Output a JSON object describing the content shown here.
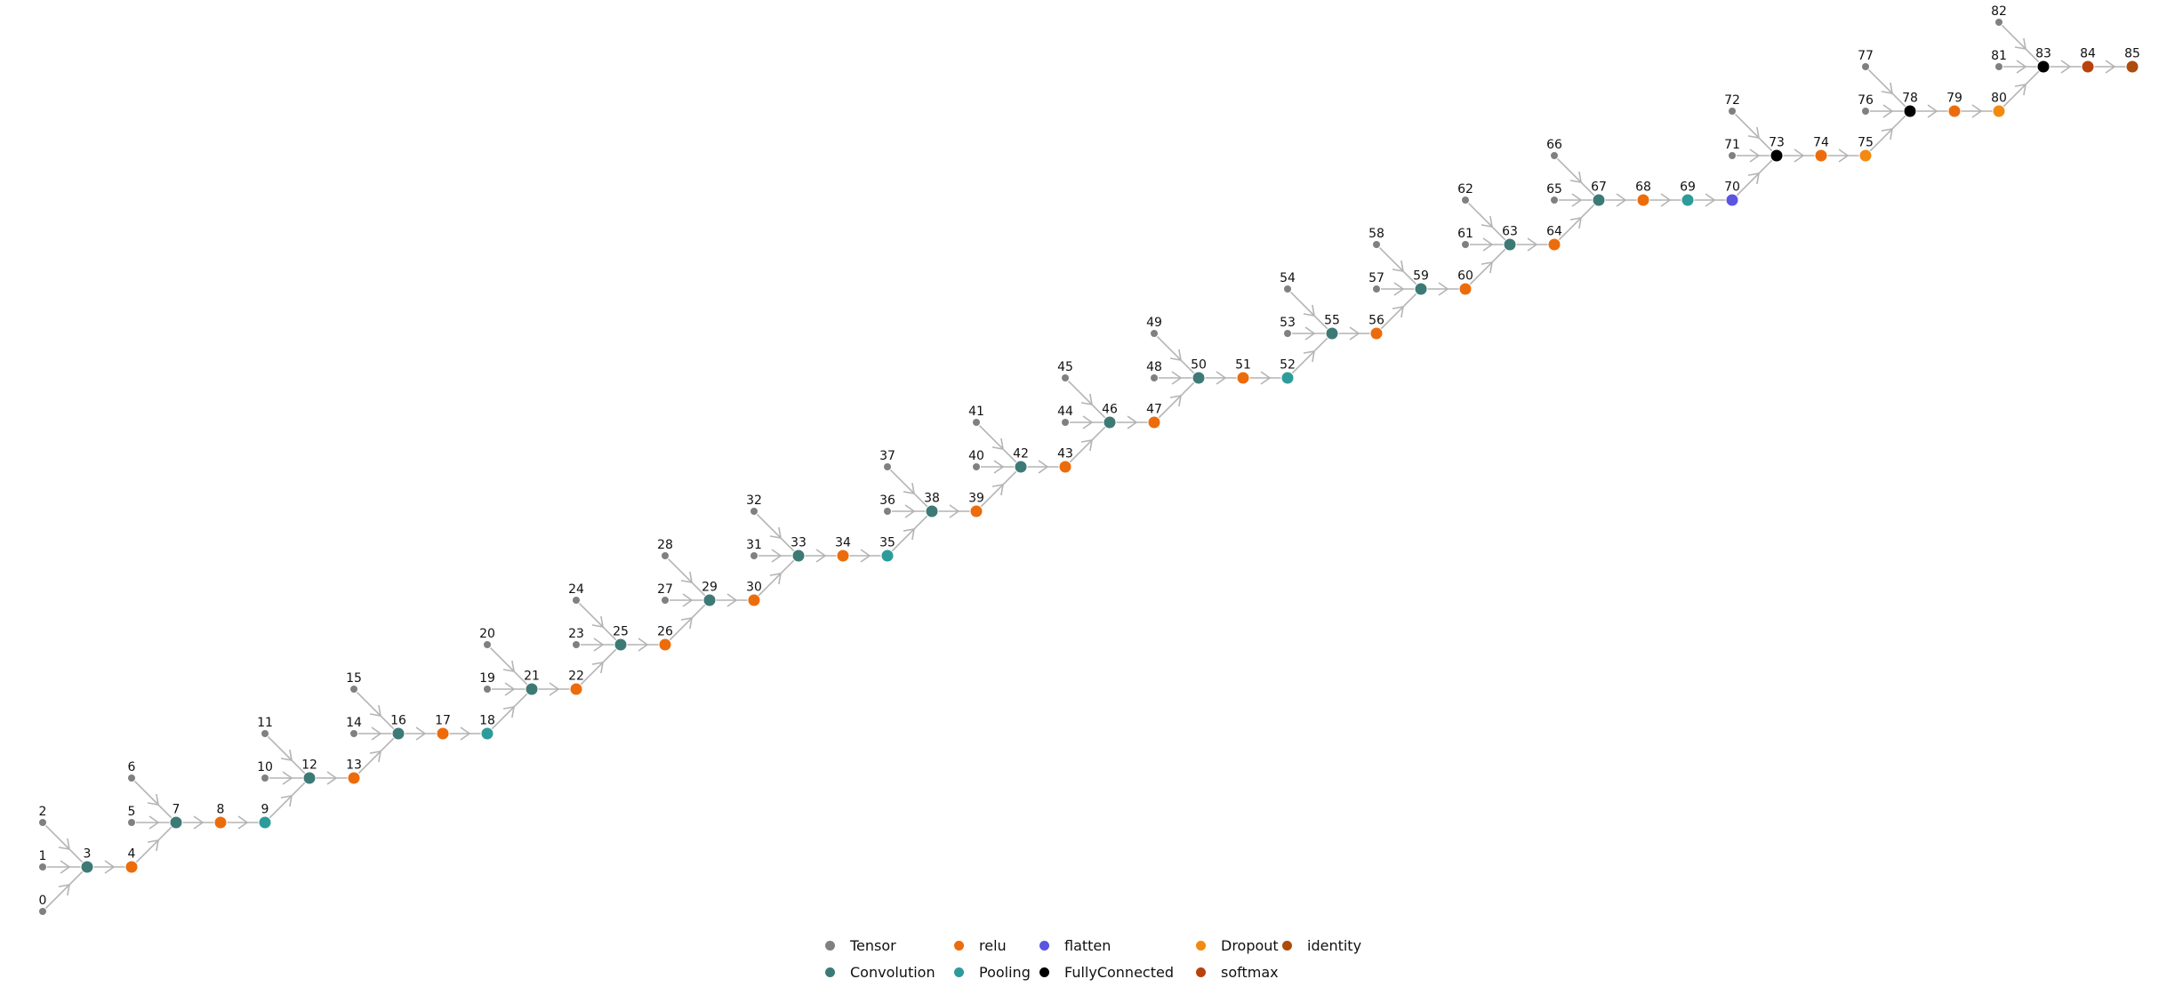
{
  "categories": [
    {
      "key": "tensor",
      "label": "Tensor",
      "color": "#808080"
    },
    {
      "key": "convolution",
      "label": "Convolution",
      "color": "#3d7a76"
    },
    {
      "key": "relu",
      "label": "relu",
      "color": "#ec6c0c"
    },
    {
      "key": "pooling",
      "label": "Pooling",
      "color": "#2e9b9b"
    },
    {
      "key": "flatten",
      "label": "flatten",
      "color": "#5b55e0"
    },
    {
      "key": "fully_connected",
      "label": "FullyConnected",
      "color": "#000000"
    },
    {
      "key": "dropout",
      "label": "Dropout",
      "color": "#f28a10"
    },
    {
      "key": "softmax",
      "label": "softmax",
      "color": "#b8420c"
    },
    {
      "key": "identity",
      "label": "identity",
      "color": "#ad4c0c"
    }
  ],
  "legend": {
    "items": [
      "tensor",
      "convolution",
      "relu",
      "pooling",
      "flatten",
      "fully_connected",
      "dropout",
      "softmax",
      "identity"
    ]
  },
  "nodes": [
    {
      "id": "0",
      "type": "tensor"
    },
    {
      "id": "1",
      "type": "tensor"
    },
    {
      "id": "2",
      "type": "tensor"
    },
    {
      "id": "3",
      "type": "convolution"
    },
    {
      "id": "4",
      "type": "relu"
    },
    {
      "id": "5",
      "type": "tensor"
    },
    {
      "id": "6",
      "type": "tensor"
    },
    {
      "id": "7",
      "type": "convolution"
    },
    {
      "id": "8",
      "type": "relu"
    },
    {
      "id": "9",
      "type": "pooling"
    },
    {
      "id": "10",
      "type": "tensor"
    },
    {
      "id": "11",
      "type": "tensor"
    },
    {
      "id": "12",
      "type": "convolution"
    },
    {
      "id": "13",
      "type": "relu"
    },
    {
      "id": "14",
      "type": "tensor"
    },
    {
      "id": "15",
      "type": "tensor"
    },
    {
      "id": "16",
      "type": "convolution"
    },
    {
      "id": "17",
      "type": "relu"
    },
    {
      "id": "18",
      "type": "pooling"
    },
    {
      "id": "19",
      "type": "tensor"
    },
    {
      "id": "20",
      "type": "tensor"
    },
    {
      "id": "21",
      "type": "convolution"
    },
    {
      "id": "22",
      "type": "relu"
    },
    {
      "id": "23",
      "type": "tensor"
    },
    {
      "id": "24",
      "type": "tensor"
    },
    {
      "id": "25",
      "type": "convolution"
    },
    {
      "id": "26",
      "type": "relu"
    },
    {
      "id": "27",
      "type": "tensor"
    },
    {
      "id": "28",
      "type": "tensor"
    },
    {
      "id": "29",
      "type": "convolution"
    },
    {
      "id": "30",
      "type": "relu"
    },
    {
      "id": "31",
      "type": "tensor"
    },
    {
      "id": "32",
      "type": "tensor"
    },
    {
      "id": "33",
      "type": "convolution"
    },
    {
      "id": "34",
      "type": "relu"
    },
    {
      "id": "35",
      "type": "pooling"
    },
    {
      "id": "36",
      "type": "tensor"
    },
    {
      "id": "37",
      "type": "tensor"
    },
    {
      "id": "38",
      "type": "convolution"
    },
    {
      "id": "39",
      "type": "relu"
    },
    {
      "id": "40",
      "type": "tensor"
    },
    {
      "id": "41",
      "type": "tensor"
    },
    {
      "id": "42",
      "type": "convolution"
    },
    {
      "id": "43",
      "type": "relu"
    },
    {
      "id": "44",
      "type": "tensor"
    },
    {
      "id": "45",
      "type": "tensor"
    },
    {
      "id": "46",
      "type": "convolution"
    },
    {
      "id": "47",
      "type": "relu"
    },
    {
      "id": "48",
      "type": "tensor"
    },
    {
      "id": "49",
      "type": "tensor"
    },
    {
      "id": "50",
      "type": "convolution"
    },
    {
      "id": "51",
      "type": "relu"
    },
    {
      "id": "52",
      "type": "pooling"
    },
    {
      "id": "53",
      "type": "tensor"
    },
    {
      "id": "54",
      "type": "tensor"
    },
    {
      "id": "55",
      "type": "convolution"
    },
    {
      "id": "56",
      "type": "relu"
    },
    {
      "id": "57",
      "type": "tensor"
    },
    {
      "id": "58",
      "type": "tensor"
    },
    {
      "id": "59",
      "type": "convolution"
    },
    {
      "id": "60",
      "type": "relu"
    },
    {
      "id": "61",
      "type": "tensor"
    },
    {
      "id": "62",
      "type": "tensor"
    },
    {
      "id": "63",
      "type": "convolution"
    },
    {
      "id": "64",
      "type": "relu"
    },
    {
      "id": "65",
      "type": "tensor"
    },
    {
      "id": "66",
      "type": "tensor"
    },
    {
      "id": "67",
      "type": "convolution"
    },
    {
      "id": "68",
      "type": "relu"
    },
    {
      "id": "69",
      "type": "pooling"
    },
    {
      "id": "70",
      "type": "flatten"
    },
    {
      "id": "71",
      "type": "tensor"
    },
    {
      "id": "72",
      "type": "tensor"
    },
    {
      "id": "73",
      "type": "fully_connected"
    },
    {
      "id": "74",
      "type": "relu"
    },
    {
      "id": "75",
      "type": "dropout"
    },
    {
      "id": "76",
      "type": "tensor"
    },
    {
      "id": "77",
      "type": "tensor"
    },
    {
      "id": "78",
      "type": "fully_connected"
    },
    {
      "id": "79",
      "type": "relu"
    },
    {
      "id": "80",
      "type": "dropout"
    },
    {
      "id": "81",
      "type": "tensor"
    },
    {
      "id": "82",
      "type": "tensor"
    },
    {
      "id": "83",
      "type": "fully_connected"
    },
    {
      "id": "84",
      "type": "softmax"
    },
    {
      "id": "85",
      "type": "identity"
    }
  ],
  "edges": [
    [
      "0",
      "3"
    ],
    [
      "1",
      "3"
    ],
    [
      "2",
      "3"
    ],
    [
      "3",
      "4"
    ],
    [
      "4",
      "7"
    ],
    [
      "5",
      "7"
    ],
    [
      "6",
      "7"
    ],
    [
      "7",
      "8"
    ],
    [
      "8",
      "9"
    ],
    [
      "9",
      "12"
    ],
    [
      "10",
      "12"
    ],
    [
      "11",
      "12"
    ],
    [
      "12",
      "13"
    ],
    [
      "13",
      "16"
    ],
    [
      "14",
      "16"
    ],
    [
      "15",
      "16"
    ],
    [
      "16",
      "17"
    ],
    [
      "17",
      "18"
    ],
    [
      "18",
      "21"
    ],
    [
      "19",
      "21"
    ],
    [
      "20",
      "21"
    ],
    [
      "21",
      "22"
    ],
    [
      "22",
      "25"
    ],
    [
      "23",
      "25"
    ],
    [
      "24",
      "25"
    ],
    [
      "25",
      "26"
    ],
    [
      "26",
      "29"
    ],
    [
      "27",
      "29"
    ],
    [
      "28",
      "29"
    ],
    [
      "29",
      "30"
    ],
    [
      "30",
      "33"
    ],
    [
      "31",
      "33"
    ],
    [
      "32",
      "33"
    ],
    [
      "33",
      "34"
    ],
    [
      "34",
      "35"
    ],
    [
      "35",
      "38"
    ],
    [
      "36",
      "38"
    ],
    [
      "37",
      "38"
    ],
    [
      "38",
      "39"
    ],
    [
      "39",
      "42"
    ],
    [
      "40",
      "42"
    ],
    [
      "41",
      "42"
    ],
    [
      "42",
      "43"
    ],
    [
      "43",
      "46"
    ],
    [
      "44",
      "46"
    ],
    [
      "45",
      "46"
    ],
    [
      "46",
      "47"
    ],
    [
      "47",
      "50"
    ],
    [
      "48",
      "50"
    ],
    [
      "49",
      "50"
    ],
    [
      "50",
      "51"
    ],
    [
      "51",
      "52"
    ],
    [
      "52",
      "55"
    ],
    [
      "53",
      "55"
    ],
    [
      "54",
      "55"
    ],
    [
      "55",
      "56"
    ],
    [
      "56",
      "59"
    ],
    [
      "57",
      "59"
    ],
    [
      "58",
      "59"
    ],
    [
      "59",
      "60"
    ],
    [
      "60",
      "63"
    ],
    [
      "61",
      "63"
    ],
    [
      "62",
      "63"
    ],
    [
      "63",
      "64"
    ],
    [
      "64",
      "67"
    ],
    [
      "65",
      "67"
    ],
    [
      "66",
      "67"
    ],
    [
      "67",
      "68"
    ],
    [
      "68",
      "69"
    ],
    [
      "69",
      "70"
    ],
    [
      "70",
      "73"
    ],
    [
      "71",
      "73"
    ],
    [
      "72",
      "73"
    ],
    [
      "73",
      "74"
    ],
    [
      "74",
      "75"
    ],
    [
      "75",
      "78"
    ],
    [
      "76",
      "78"
    ],
    [
      "77",
      "78"
    ],
    [
      "78",
      "79"
    ],
    [
      "79",
      "80"
    ],
    [
      "80",
      "83"
    ],
    [
      "81",
      "83"
    ],
    [
      "82",
      "83"
    ],
    [
      "83",
      "84"
    ],
    [
      "84",
      "85"
    ]
  ]
}
